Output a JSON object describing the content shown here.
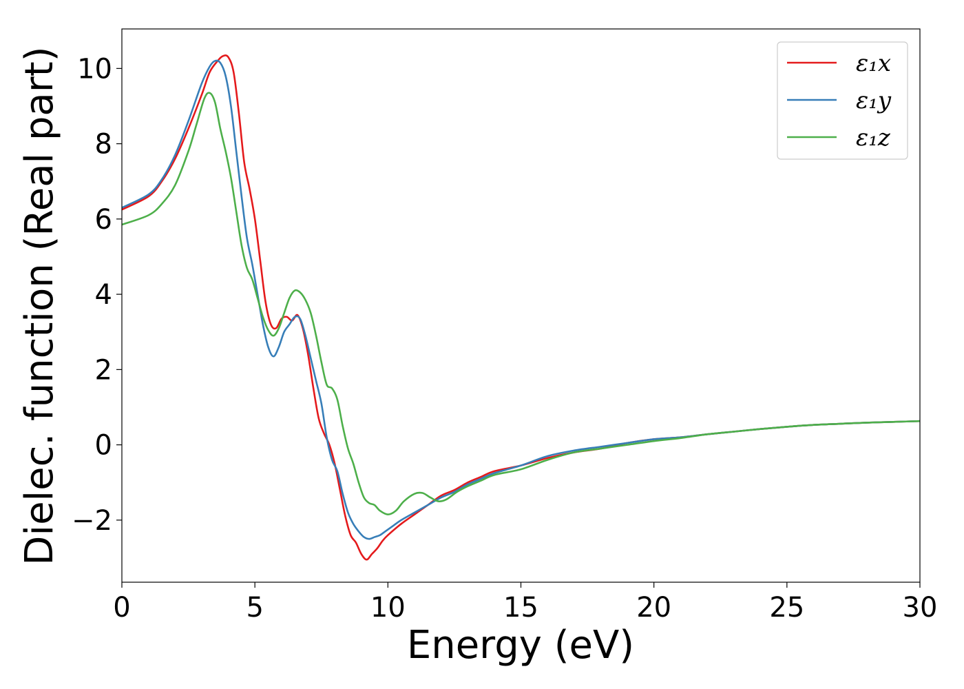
{
  "chart_data": {
    "type": "line",
    "xlabel": "Energy (eV)",
    "ylabel": "Dielec. function (Real part)",
    "xlim": [
      0,
      30
    ],
    "ylim": [
      -3.65,
      11.05
    ],
    "xticks": [
      0,
      5,
      10,
      15,
      20,
      25,
      30
    ],
    "yticks": [
      -2,
      0,
      2,
      4,
      6,
      8,
      10
    ],
    "ytick_labels": [
      "−2",
      "0",
      "2",
      "4",
      "6",
      "8",
      "10"
    ],
    "grid": false,
    "legend_position": "top-right",
    "series": [
      {
        "name": "ε₁x",
        "color": "#e41a1c",
        "x": [
          0,
          1,
          1.5,
          2,
          2.5,
          3,
          3.3,
          3.6,
          3.8,
          4.0,
          4.2,
          4.4,
          4.6,
          4.8,
          5.0,
          5.2,
          5.4,
          5.6,
          5.8,
          6.0,
          6.2,
          6.4,
          6.6,
          6.8,
          7.0,
          7.2,
          7.4,
          7.6,
          7.8,
          8.0,
          8.2,
          8.4,
          8.6,
          8.8,
          9.0,
          9.2,
          9.4,
          9.6,
          9.8,
          10.0,
          10.5,
          11.0,
          11.5,
          12.0,
          12.5,
          13.0,
          13.5,
          14.0,
          15.0,
          16.0,
          17.0,
          18.0,
          19.0,
          20.0,
          21.0,
          22.0,
          23.0,
          24.0,
          25.0,
          26.0,
          27.0,
          28.0,
          29.0,
          30.0
        ],
        "y": [
          6.25,
          6.6,
          7.0,
          7.6,
          8.4,
          9.3,
          9.9,
          10.2,
          10.33,
          10.3,
          9.9,
          8.8,
          7.5,
          6.8,
          6.0,
          4.9,
          3.8,
          3.2,
          3.1,
          3.35,
          3.4,
          3.3,
          3.45,
          3.1,
          2.4,
          1.5,
          0.7,
          0.3,
          0.0,
          -0.5,
          -1.2,
          -1.9,
          -2.4,
          -2.6,
          -2.9,
          -3.05,
          -2.9,
          -2.75,
          -2.55,
          -2.4,
          -2.1,
          -1.85,
          -1.6,
          -1.35,
          -1.2,
          -1.0,
          -0.85,
          -0.7,
          -0.55,
          -0.35,
          -0.2,
          -0.1,
          0.05,
          0.15,
          0.2,
          0.28,
          0.35,
          0.42,
          0.48,
          0.53,
          0.56,
          0.59,
          0.61,
          0.63
        ]
      },
      {
        "name": "ε₁y",
        "color": "#377eb8",
        "x": [
          0,
          1,
          1.5,
          2,
          2.5,
          3,
          3.3,
          3.5,
          3.7,
          3.9,
          4.1,
          4.3,
          4.5,
          4.7,
          4.9,
          5.1,
          5.3,
          5.5,
          5.7,
          5.9,
          6.1,
          6.3,
          6.5,
          6.7,
          6.9,
          7.1,
          7.3,
          7.5,
          7.7,
          7.9,
          8.1,
          8.3,
          8.5,
          8.7,
          8.9,
          9.1,
          9.3,
          9.5,
          9.7,
          9.9,
          10.2,
          10.5,
          11.0,
          11.5,
          12.0,
          12.5,
          13.0,
          13.5,
          14.0,
          15.0,
          16.0,
          17.0,
          18.0,
          19.0,
          20.0,
          21.0,
          22.0,
          23.0,
          24.0,
          25.0,
          26.0,
          27.0,
          28.0,
          29.0,
          30.0
        ],
        "y": [
          6.3,
          6.65,
          7.05,
          7.7,
          8.6,
          9.6,
          10.05,
          10.2,
          10.15,
          9.8,
          9.0,
          7.8,
          6.6,
          5.5,
          4.8,
          4.0,
          3.2,
          2.6,
          2.35,
          2.6,
          3.0,
          3.2,
          3.4,
          3.35,
          2.9,
          2.3,
          1.7,
          1.1,
          0.2,
          -0.4,
          -0.7,
          -1.3,
          -1.8,
          -2.1,
          -2.3,
          -2.45,
          -2.5,
          -2.45,
          -2.4,
          -2.3,
          -2.15,
          -2.0,
          -1.8,
          -1.6,
          -1.4,
          -1.25,
          -1.05,
          -0.9,
          -0.75,
          -0.55,
          -0.3,
          -0.15,
          -0.05,
          0.05,
          0.15,
          0.2,
          0.28,
          0.35,
          0.42,
          0.48,
          0.53,
          0.56,
          0.59,
          0.61,
          0.63
        ]
      },
      {
        "name": "ε₁z",
        "color": "#4daf4a",
        "x": [
          0,
          1,
          1.5,
          2,
          2.5,
          2.8,
          3.1,
          3.3,
          3.5,
          3.7,
          3.9,
          4.1,
          4.3,
          4.5,
          4.7,
          4.9,
          5.1,
          5.3,
          5.5,
          5.7,
          5.9,
          6.1,
          6.3,
          6.5,
          6.7,
          6.9,
          7.1,
          7.3,
          7.5,
          7.7,
          7.9,
          8.1,
          8.3,
          8.5,
          8.7,
          8.9,
          9.1,
          9.3,
          9.5,
          9.7,
          10.0,
          10.3,
          10.6,
          11.0,
          11.3,
          11.6,
          11.9,
          12.2,
          12.6,
          13.0,
          13.5,
          14.0,
          15.0,
          16.0,
          17.0,
          18.0,
          19.0,
          20.0,
          21.0,
          22.0,
          23.0,
          24.0,
          25.0,
          26.0,
          27.0,
          28.0,
          29.0,
          30.0
        ],
        "y": [
          5.85,
          6.1,
          6.4,
          6.9,
          7.8,
          8.5,
          9.2,
          9.35,
          9.1,
          8.4,
          7.8,
          7.1,
          6.2,
          5.3,
          4.7,
          4.4,
          3.9,
          3.4,
          3.05,
          2.9,
          3.1,
          3.5,
          3.9,
          4.1,
          4.05,
          3.85,
          3.5,
          2.9,
          2.2,
          1.6,
          1.5,
          1.2,
          0.5,
          -0.1,
          -0.5,
          -1.0,
          -1.4,
          -1.55,
          -1.6,
          -1.75,
          -1.85,
          -1.75,
          -1.5,
          -1.3,
          -1.28,
          -1.4,
          -1.5,
          -1.45,
          -1.25,
          -1.1,
          -0.95,
          -0.8,
          -0.65,
          -0.4,
          -0.2,
          -0.1,
          0.0,
          0.1,
          0.18,
          0.28,
          0.35,
          0.42,
          0.48,
          0.53,
          0.56,
          0.59,
          0.61,
          0.63
        ]
      }
    ]
  }
}
